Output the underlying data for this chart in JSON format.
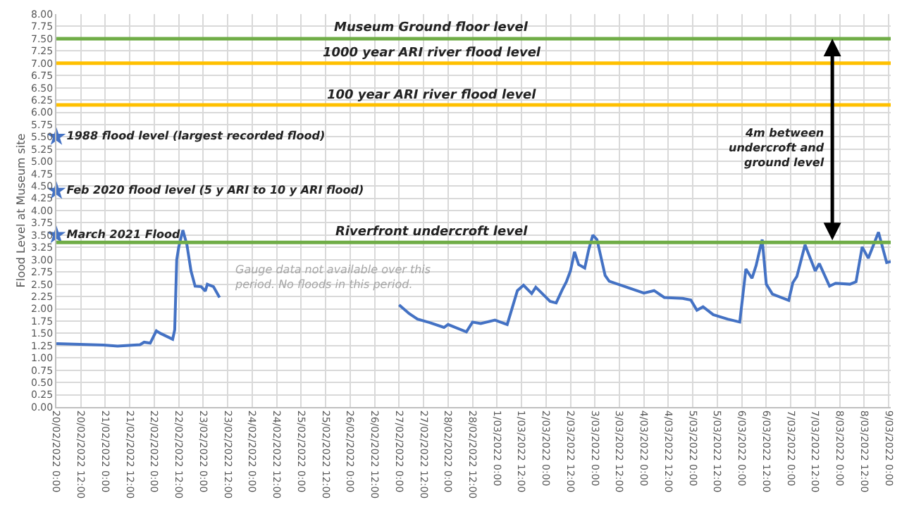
{
  "chart_data": {
    "type": "line",
    "ylabel": "Flood Level at Museum site",
    "x": [
      "2022-02-20T00:00",
      "2022-02-20T23:00",
      "2022-02-21T06:00",
      "2022-02-21T17:00",
      "2022-02-21T19:00",
      "2022-02-21T22:00",
      "2022-02-22T01:00",
      "2022-02-22T03:00",
      "2022-02-22T08:00",
      "2022-02-22T09:00",
      "2022-02-22T10:00",
      "2022-02-22T11:00",
      "2022-02-22T12:00",
      "2022-02-22T14:00",
      "2022-02-22T16:00",
      "2022-02-22T18:00",
      "2022-02-22T20:00",
      "2022-02-22T23:00",
      "2022-02-23T01:00",
      "2022-02-23T02:00",
      "2022-02-23T05:00",
      "2022-02-23T08:00",
      "2022-02-24T12:00",
      "2022-02-27T00:00",
      "2022-02-27T05:00",
      "2022-02-27T09:00",
      "2022-02-27T15:00",
      "2022-02-27T22:00",
      "2022-02-28T00:00",
      "2022-02-28T09:00",
      "2022-02-28T12:00",
      "2022-02-28T16:00",
      "2022-02-28T23:00",
      "2022-03-01T05:00",
      "2022-03-01T10:00",
      "2022-03-01T13:00",
      "2022-03-01T17:00",
      "2022-03-01T19:00",
      "2022-03-02T02:00",
      "2022-03-02T05:00",
      "2022-03-02T08:00",
      "2022-03-02T10:00",
      "2022-03-02T12:00",
      "2022-03-02T14:00",
      "2022-03-02T16:00",
      "2022-03-02T19:00",
      "2022-03-02T21:00",
      "2022-03-02T23:00",
      "2022-03-03T01:00",
      "2022-03-03T05:00",
      "2022-03-03T07:00",
      "2022-03-04T00:00",
      "2022-03-04T05:00",
      "2022-03-04T10:00",
      "2022-03-04T19:00",
      "2022-03-04T23:00",
      "2022-03-05T02:00",
      "2022-03-05T05:00",
      "2022-03-05T10:00",
      "2022-03-05T17:00",
      "2022-03-05T23:00",
      "2022-03-06T02:00",
      "2022-03-06T05:00",
      "2022-03-06T07:00",
      "2022-03-06T10:00",
      "2022-03-06T12:00",
      "2022-03-06T15:00",
      "2022-03-06T23:00",
      "2022-03-07T01:00",
      "2022-03-07T03:00",
      "2022-03-07T07:00",
      "2022-03-07T12:00",
      "2022-03-07T14:00",
      "2022-03-07T19:00",
      "2022-03-07T22:00",
      "2022-03-08T05:00",
      "2022-03-08T08:00",
      "2022-03-08T11:00",
      "2022-03-08T14:00",
      "2022-03-08T19:00",
      "2022-03-08T23:00",
      "2022-03-09T01:00"
    ],
    "series": [
      {
        "color": "#4472c4",
        "values": [
          1.29,
          1.26,
          1.24,
          1.27,
          1.32,
          1.3,
          1.55,
          1.5,
          1.4,
          1.38,
          1.57,
          3.0,
          3.26,
          3.6,
          3.3,
          2.77,
          2.46,
          2.45,
          2.36,
          2.5,
          2.45,
          2.23,
          null,
          2.08,
          1.9,
          1.79,
          1.72,
          1.62,
          1.68,
          1.53,
          1.73,
          1.7,
          1.77,
          1.68,
          2.37,
          2.48,
          2.31,
          2.44,
          2.15,
          2.12,
          2.39,
          2.55,
          2.77,
          3.16,
          2.9,
          2.83,
          3.21,
          3.5,
          3.41,
          2.68,
          2.56,
          2.32,
          2.37,
          2.23,
          2.21,
          2.18,
          1.97,
          2.04,
          1.88,
          1.79,
          1.73,
          2.81,
          2.62,
          2.88,
          3.41,
          2.5,
          2.3,
          2.17,
          2.53,
          2.66,
          3.3,
          2.77,
          2.92,
          2.46,
          2.52,
          2.5,
          2.55,
          3.26,
          3.03,
          3.56,
          2.94,
          2.96
        ]
      },
      {
        "type": "scatter",
        "marker": "star",
        "name": "1988 flood level (largest recorded flood)",
        "color": "#4472c4",
        "x": [
          "2022-02-20T00:00"
        ],
        "values": [
          5.5
        ]
      },
      {
        "type": "scatter",
        "marker": "star",
        "name": "Feb 2020 flood level (5 y ARI to 10 y ARI flood)",
        "color": "#4472c4",
        "x": [
          "2022-02-20T00:00"
        ],
        "values": [
          4.4
        ]
      },
      {
        "type": "scatter",
        "marker": "star",
        "name": "March 2021 Flood",
        "color": "#4472c4",
        "x": [
          "2022-02-20T00:00"
        ],
        "values": [
          3.5
        ]
      }
    ],
    "ref_lines": [
      {
        "axis": "y",
        "value": 7.5,
        "label": "Museum Ground floor level",
        "color": "#70ad47"
      },
      {
        "axis": "y",
        "value": 7.0,
        "label": "1000 year ARI river flood level",
        "color": "#ffc000"
      },
      {
        "axis": "y",
        "value": 6.15,
        "label": "100 year ARI river flood level",
        "color": "#ffc000"
      },
      {
        "axis": "y",
        "value": 3.35,
        "label": "Riverfront undercroft level",
        "color": "#70ad47"
      }
    ],
    "annotations": [
      "4m between\nundercroft and\nground level",
      "Gauge data not available over this\nperiod. No floods in this period."
    ],
    "xlim": [
      "2022-02-20T00:00",
      "2022-03-09T01:00"
    ],
    "xticks": [
      {
        "value": "2022-02-20T00:00",
        "label": "20/02/2022 0:00"
      },
      {
        "value": "2022-02-20T12:00",
        "label": "20/02/2022 12:00"
      },
      {
        "value": "2022-02-21T00:00",
        "label": "21/02/2022 0:00"
      },
      {
        "value": "2022-02-21T12:00",
        "label": "21/02/2022 12:00"
      },
      {
        "value": "2022-02-22T00:00",
        "label": "22/02/2022 0:00"
      },
      {
        "value": "2022-02-22T12:00",
        "label": "22/02/2022 12:00"
      },
      {
        "value": "2022-02-23T00:00",
        "label": "23/02/2022 0:00"
      },
      {
        "value": "2022-02-23T12:00",
        "label": "23/02/2022 12:00"
      },
      {
        "value": "2022-02-24T00:00",
        "label": "24/02/2022 0:00"
      },
      {
        "value": "2022-02-24T12:00",
        "label": "24/02/2022 12:00"
      },
      {
        "value": "2022-02-25T00:00",
        "label": "25/02/2022 0:00"
      },
      {
        "value": "2022-02-25T12:00",
        "label": "25/02/2022 12:00"
      },
      {
        "value": "2022-02-26T00:00",
        "label": "26/02/2022 0:00"
      },
      {
        "value": "2022-02-26T12:00",
        "label": "26/02/2022 12:00"
      },
      {
        "value": "2022-02-27T00:00",
        "label": "27/02/2022 0:00"
      },
      {
        "value": "2022-02-27T12:00",
        "label": "27/02/2022 12:00"
      },
      {
        "value": "2022-02-28T00:00",
        "label": "28/02/2022 0:00"
      },
      {
        "value": "2022-02-28T12:00",
        "label": "28/02/2022 12:00"
      },
      {
        "value": "2022-03-01T00:00",
        "label": "1/03/2022 0:00"
      },
      {
        "value": "2022-03-01T12:00",
        "label": "1/03/2022 12:00"
      },
      {
        "value": "2022-03-02T00:00",
        "label": "2/03/2022 0:00"
      },
      {
        "value": "2022-03-02T12:00",
        "label": "2/03/2022 12:00"
      },
      {
        "value": "2022-03-03T00:00",
        "label": "3/03/2022 0:00"
      },
      {
        "value": "2022-03-03T12:00",
        "label": "3/03/2022 12:00"
      },
      {
        "value": "2022-03-04T00:00",
        "label": "4/03/2022 0:00"
      },
      {
        "value": "2022-03-04T12:00",
        "label": "4/03/2022 12:00"
      },
      {
        "value": "2022-03-05T00:00",
        "label": "5/03/2022 0:00"
      },
      {
        "value": "2022-03-05T12:00",
        "label": "5/03/2022 12:00"
      },
      {
        "value": "2022-03-06T00:00",
        "label": "6/03/2022 0:00"
      },
      {
        "value": "2022-03-06T12:00",
        "label": "6/03/2022 12:00"
      },
      {
        "value": "2022-03-07T00:00",
        "label": "7/03/2022 0:00"
      },
      {
        "value": "2022-03-07T12:00",
        "label": "7/03/2022 12:00"
      },
      {
        "value": "2022-03-08T00:00",
        "label": "8/03/2022 0:00"
      },
      {
        "value": "2022-03-08T12:00",
        "label": "8/03/2022 12:00"
      },
      {
        "value": "2022-03-09T00:00",
        "label": "9/03/2022 0:00"
      }
    ],
    "ylim": [
      0,
      8
    ],
    "yticks": [
      {
        "value": 0,
        "label": "0.00"
      },
      {
        "value": 0.25,
        "label": "0.25"
      },
      {
        "value": 0.5,
        "label": "0.50"
      },
      {
        "value": 0.75,
        "label": "0.75"
      },
      {
        "value": 1,
        "label": "1.00"
      },
      {
        "value": 1.25,
        "label": "1.25"
      },
      {
        "value": 1.5,
        "label": "1.50"
      },
      {
        "value": 1.75,
        "label": "1.75"
      },
      {
        "value": 2,
        "label": "2.00"
      },
      {
        "value": 2.25,
        "label": "2.25"
      },
      {
        "value": 2.5,
        "label": "2.50"
      },
      {
        "value": 2.75,
        "label": "2.75"
      },
      {
        "value": 3,
        "label": "3.00"
      },
      {
        "value": 3.25,
        "label": "3.25"
      },
      {
        "value": 3.5,
        "label": "3.50"
      },
      {
        "value": 3.75,
        "label": "3.75"
      },
      {
        "value": 4,
        "label": "4.00"
      },
      {
        "value": 4.25,
        "label": "4.25"
      },
      {
        "value": 4.5,
        "label": "4.50"
      },
      {
        "value": 4.75,
        "label": "4.75"
      },
      {
        "value": 5,
        "label": "5.00"
      },
      {
        "value": 5.25,
        "label": "5.25"
      },
      {
        "value": 5.5,
        "label": "5.50"
      },
      {
        "value": 5.75,
        "label": "5.75"
      },
      {
        "value": 6,
        "label": "6.00"
      },
      {
        "value": 6.25,
        "label": "6.25"
      },
      {
        "value": 6.5,
        "label": "6.50"
      },
      {
        "value": 6.75,
        "label": "6.75"
      },
      {
        "value": 7,
        "label": "7.00"
      },
      {
        "value": 7.25,
        "label": "7.25"
      },
      {
        "value": 7.5,
        "label": "7.50"
      },
      {
        "value": 7.75,
        "label": "7.75"
      },
      {
        "value": 8,
        "label": "8.00"
      }
    ],
    "grid": true
  }
}
